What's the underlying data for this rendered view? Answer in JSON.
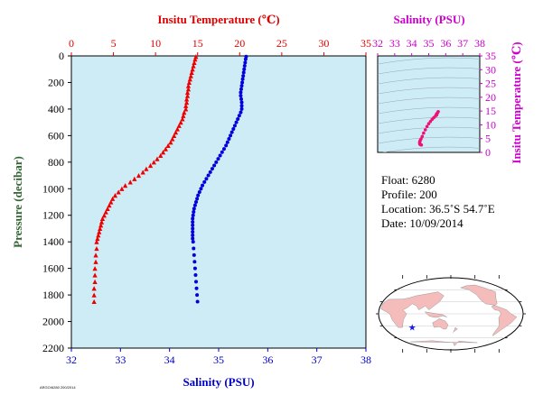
{
  "chart_data": [
    {
      "type": "scatter",
      "title": "",
      "x_top_label": "Insitu Temperature (℃)",
      "x_top_ticks": [
        "0",
        "5",
        "10",
        "15",
        "20",
        "25",
        "30",
        "35"
      ],
      "x_top_range": [
        0,
        35
      ],
      "x_bottom_label": "Salinity (PSU)",
      "x_bottom_ticks": [
        "32",
        "33",
        "34",
        "35",
        "36",
        "37",
        "38"
      ],
      "x_bottom_range": [
        32,
        38
      ],
      "ylabel": "Pressure (decibar)",
      "y_ticks": [
        "0",
        "200",
        "400",
        "600",
        "800",
        "1000",
        "1200",
        "1400",
        "1600",
        "1800",
        "2000",
        "2200"
      ],
      "ylim": [
        0,
        2200
      ],
      "y_inverted": true,
      "grid": false,
      "series": [
        {
          "axis": "temperature",
          "marker": "triangle",
          "color": "#ee0000",
          "points": [
            [
              14.8,
              5
            ],
            [
              14.7,
              25
            ],
            [
              14.6,
              50
            ],
            [
              14.5,
              75
            ],
            [
              14.4,
              100
            ],
            [
              14.3,
              125
            ],
            [
              14.2,
              150
            ],
            [
              14.1,
              175
            ],
            [
              14.0,
              200
            ],
            [
              13.9,
              225
            ],
            [
              13.9,
              250
            ],
            [
              13.8,
              275
            ],
            [
              13.8,
              300
            ],
            [
              13.7,
              325
            ],
            [
              13.7,
              350
            ],
            [
              13.6,
              375
            ],
            [
              13.6,
              400
            ],
            [
              13.4,
              425
            ],
            [
              13.3,
              450
            ],
            [
              13.2,
              475
            ],
            [
              13.0,
              500
            ],
            [
              12.8,
              525
            ],
            [
              12.6,
              550
            ],
            [
              12.4,
              575
            ],
            [
              12.2,
              600
            ],
            [
              12.0,
              625
            ],
            [
              11.8,
              650
            ],
            [
              11.5,
              675
            ],
            [
              11.2,
              700
            ],
            [
              10.9,
              725
            ],
            [
              10.6,
              750
            ],
            [
              10.2,
              775
            ],
            [
              9.8,
              800
            ],
            [
              9.4,
              825
            ],
            [
              8.9,
              850
            ],
            [
              8.5,
              875
            ],
            [
              8.0,
              900
            ],
            [
              7.5,
              925
            ],
            [
              7.0,
              950
            ],
            [
              6.4,
              975
            ],
            [
              6.0,
              1000
            ],
            [
              5.6,
              1025
            ],
            [
              5.2,
              1050
            ],
            [
              4.9,
              1075
            ],
            [
              4.7,
              1100
            ],
            [
              4.5,
              1125
            ],
            [
              4.3,
              1150
            ],
            [
              4.1,
              1175
            ],
            [
              3.9,
              1200
            ],
            [
              3.7,
              1225
            ],
            [
              3.6,
              1250
            ],
            [
              3.5,
              1275
            ],
            [
              3.4,
              1300
            ],
            [
              3.3,
              1325
            ],
            [
              3.2,
              1350
            ],
            [
              3.1,
              1375
            ],
            [
              3.0,
              1400
            ],
            [
              3.0,
              1450
            ],
            [
              2.9,
              1500
            ],
            [
              2.9,
              1550
            ],
            [
              2.8,
              1600
            ],
            [
              2.8,
              1650
            ],
            [
              2.8,
              1700
            ],
            [
              2.7,
              1750
            ],
            [
              2.7,
              1800
            ],
            [
              2.7,
              1850
            ]
          ]
        },
        {
          "axis": "salinity",
          "marker": "circle",
          "color": "#0000dd",
          "points": [
            [
              35.56,
              5
            ],
            [
              35.55,
              25
            ],
            [
              35.54,
              50
            ],
            [
              35.53,
              75
            ],
            [
              35.52,
              100
            ],
            [
              35.51,
              125
            ],
            [
              35.5,
              150
            ],
            [
              35.49,
              175
            ],
            [
              35.48,
              200
            ],
            [
              35.47,
              225
            ],
            [
              35.46,
              250
            ],
            [
              35.45,
              275
            ],
            [
              35.45,
              300
            ],
            [
              35.46,
              325
            ],
            [
              35.47,
              350
            ],
            [
              35.47,
              375
            ],
            [
              35.47,
              400
            ],
            [
              35.45,
              425
            ],
            [
              35.42,
              450
            ],
            [
              35.39,
              475
            ],
            [
              35.36,
              500
            ],
            [
              35.33,
              525
            ],
            [
              35.3,
              550
            ],
            [
              35.27,
              575
            ],
            [
              35.24,
              600
            ],
            [
              35.21,
              625
            ],
            [
              35.18,
              650
            ],
            [
              35.15,
              675
            ],
            [
              35.11,
              700
            ],
            [
              35.07,
              725
            ],
            [
              35.03,
              750
            ],
            [
              34.99,
              775
            ],
            [
              34.95,
              800
            ],
            [
              34.91,
              825
            ],
            [
              34.87,
              850
            ],
            [
              34.83,
              875
            ],
            [
              34.79,
              900
            ],
            [
              34.75,
              925
            ],
            [
              34.71,
              950
            ],
            [
              34.67,
              975
            ],
            [
              34.64,
              1000
            ],
            [
              34.61,
              1025
            ],
            [
              34.58,
              1050
            ],
            [
              34.56,
              1075
            ],
            [
              34.54,
              1100
            ],
            [
              34.52,
              1125
            ],
            [
              34.5,
              1150
            ],
            [
              34.49,
              1175
            ],
            [
              34.48,
              1200
            ],
            [
              34.47,
              1225
            ],
            [
              34.47,
              1250
            ],
            [
              34.47,
              1275
            ],
            [
              34.47,
              1300
            ],
            [
              34.47,
              1325
            ],
            [
              34.47,
              1350
            ],
            [
              34.47,
              1375
            ],
            [
              34.48,
              1400
            ],
            [
              34.49,
              1450
            ],
            [
              34.5,
              1500
            ],
            [
              34.51,
              1550
            ],
            [
              34.52,
              1600
            ],
            [
              34.53,
              1650
            ],
            [
              34.54,
              1700
            ],
            [
              34.55,
              1750
            ],
            [
              34.56,
              1800
            ],
            [
              34.57,
              1850
            ]
          ]
        }
      ]
    },
    {
      "type": "scatter",
      "title": "",
      "x_top_label": "Salinity (PSU)",
      "x_ticks": [
        "32",
        "33",
        "34",
        "35",
        "36",
        "37",
        "38"
      ],
      "xlim": [
        32,
        38
      ],
      "ylabel": "Insitu Temperature (℃)",
      "y_ticks": [
        "0",
        "5",
        "10",
        "15",
        "20",
        "25",
        "30",
        "35"
      ],
      "ylim": [
        0,
        35
      ],
      "grid": false,
      "background_contours": "density isolines",
      "series": [
        {
          "marker": "circle",
          "color": "#ee1177",
          "points": [
            [
              35.56,
              14.8
            ],
            [
              35.52,
              14.4
            ],
            [
              35.48,
              14.0
            ],
            [
              35.45,
              13.8
            ],
            [
              35.47,
              13.6
            ],
            [
              35.4,
              13.2
            ],
            [
              35.3,
              12.6
            ],
            [
              35.2,
              12.0
            ],
            [
              35.1,
              11.2
            ],
            [
              35.0,
              10.4
            ],
            [
              34.9,
              9.4
            ],
            [
              34.8,
              8.2
            ],
            [
              34.7,
              7.0
            ],
            [
              34.62,
              5.8
            ],
            [
              34.55,
              4.9
            ],
            [
              34.5,
              4.3
            ],
            [
              34.47,
              3.8
            ],
            [
              34.47,
              3.4
            ],
            [
              34.48,
              3.0
            ],
            [
              34.5,
              2.9
            ],
            [
              34.53,
              2.8
            ],
            [
              34.57,
              2.7
            ]
          ]
        }
      ]
    }
  ],
  "info": {
    "float_label": "Float:",
    "float_value": "6280",
    "profile_label": "Profile:",
    "profile_value": "200",
    "location_label": "Location:",
    "location_value": "36.5˚S  54.7˚E",
    "date_label": "Date:",
    "date_value": "10/09/2014"
  },
  "map": {
    "ocean_color": "#ffffff",
    "land_color": "#f5bcbc",
    "marker_color": "#1a1aee",
    "marker_lat": -36.5,
    "marker_lon": 54.7
  },
  "footer_text": "ARGO/6280 200/2014"
}
